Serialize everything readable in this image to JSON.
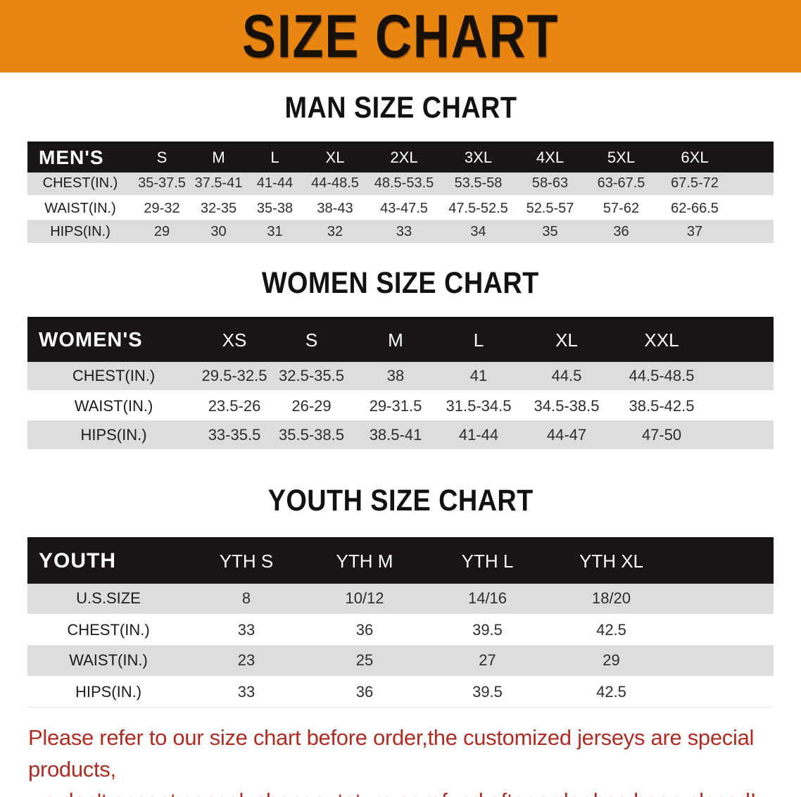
{
  "banner": {
    "title": "SIZE CHART"
  },
  "colors": {
    "banner_bg": "#E98511",
    "header_bg": "#181514",
    "row_gray": "#DDDDDD",
    "disclaimer_red": "#B02B22"
  },
  "sections": [
    {
      "heading": "MAN SIZE CHART",
      "table": {
        "label": "MEN'S",
        "columns": [
          "S",
          "M",
          "L",
          "XL",
          "2XL",
          "3XL",
          "4XL",
          "5XL",
          "6XL"
        ],
        "rows": [
          {
            "label": "CHEST(IN.)",
            "values": [
              "35-37.5",
              "37.5-41",
              "41-44",
              "44-48.5",
              "48.5-53.5",
              "53.5-58",
              "58-63",
              "63-67.5",
              "67.5-72"
            ]
          },
          {
            "label": "WAIST(IN.)",
            "values": [
              "29-32",
              "32-35",
              "35-38",
              "38-43",
              "43-47.5",
              "47.5-52.5",
              "52.5-57",
              "57-62",
              "62-66.5"
            ]
          },
          {
            "label": "HIPS(IN.)",
            "values": [
              "29",
              "30",
              "31",
              "32",
              "33",
              "34",
              "35",
              "36",
              "37"
            ]
          }
        ]
      }
    },
    {
      "heading": "WOMEN SIZE CHART",
      "table": {
        "label": "WOMEN'S",
        "columns": [
          "XS",
          "S",
          "M",
          "L",
          "XL",
          "XXL"
        ],
        "rows": [
          {
            "label": "CHEST(IN.)",
            "values": [
              "29.5-32.5",
              "32.5-35.5",
              "38",
              "41",
              "44.5",
              "44.5-48.5"
            ]
          },
          {
            "label": "WAIST(IN.)",
            "values": [
              "23.5-26",
              "26-29",
              "29-31.5",
              "31.5-34.5",
              "34.5-38.5",
              "38.5-42.5"
            ]
          },
          {
            "label": "HIPS(IN.)",
            "values": [
              "33-35.5",
              "35.5-38.5",
              "38.5-41",
              "41-44",
              "44-47",
              "47-50"
            ]
          }
        ]
      }
    },
    {
      "heading": "YOUTH SIZE CHART",
      "table": {
        "label": "YOUTH",
        "columns": [
          "YTH S",
          "YTH M",
          "YTH L",
          "YTH XL"
        ],
        "rows": [
          {
            "label": "U.S.SIZE",
            "values": [
              "8",
              "10/12",
              "14/16",
              "18/20"
            ]
          },
          {
            "label": "CHEST(IN.)",
            "values": [
              "33",
              "36",
              "39.5",
              "42.5"
            ]
          },
          {
            "label": "WAIST(IN.)",
            "values": [
              "23",
              "25",
              "27",
              "29"
            ]
          },
          {
            "label": "HIPS(IN.)",
            "values": [
              "33",
              "36",
              "39.5",
              "42.5"
            ]
          }
        ]
      }
    }
  ],
  "disclaimer": {
    "lines": [
      "Please refer to our size chart before order,the customized jerseys are special products,",
      "we don't accept cancel, change, teturn or refund after order has been placed!"
    ]
  }
}
